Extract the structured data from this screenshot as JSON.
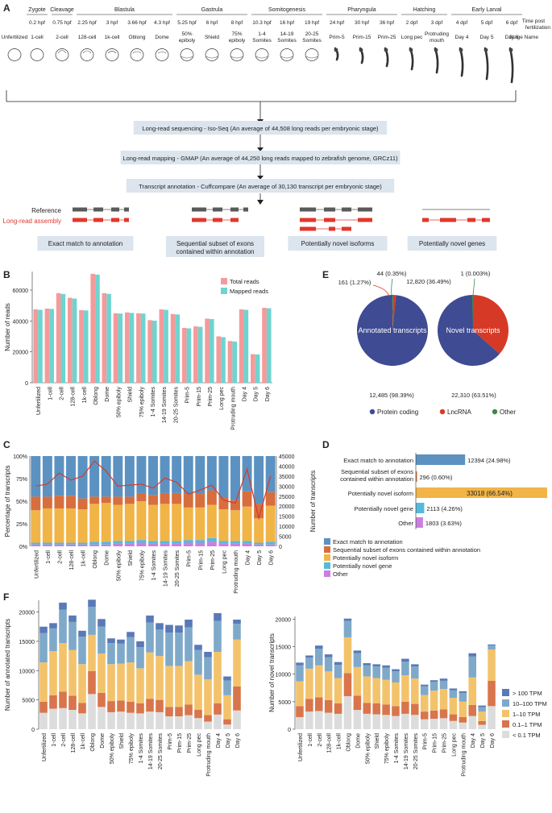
{
  "panelA": {
    "label": "A",
    "periods": [
      {
        "name": "Zygote",
        "stages": [
          {
            "time": "0.2 hpf",
            "name": "1-cell"
          }
        ]
      },
      {
        "name": "Cleavage",
        "stages": [
          {
            "time": "0.75 hpf",
            "name": "2-cell"
          }
        ]
      },
      {
        "name": "Blastula",
        "stages": [
          {
            "time": "2.25 hpf",
            "name": "128-cell"
          },
          {
            "time": "3 hpf",
            "name": "1k-cell"
          },
          {
            "time": "3.66 hpf",
            "name": "Oblong"
          },
          {
            "time": "4.3 hpf",
            "name": "Dome"
          }
        ]
      },
      {
        "name": "Gastrula",
        "stages": [
          {
            "time": "5.25 hpf",
            "name": "50% epiboly"
          },
          {
            "time": "6 hpf",
            "name": "Shield"
          },
          {
            "time": "8 hpf",
            "name": "75% epiboly"
          }
        ]
      },
      {
        "name": "Somitogenesis",
        "stages": [
          {
            "time": "10.3 hpf",
            "name": "1-4 Somites"
          },
          {
            "time": "16 hpf",
            "name": "14-19 Somites"
          },
          {
            "time": "19 hpf",
            "name": "20-25 Somites"
          }
        ]
      },
      {
        "name": "Pharyngula",
        "stages": [
          {
            "time": "24 hpf",
            "name": "Prim-5"
          },
          {
            "time": "30 hpf",
            "name": "Prim-15"
          },
          {
            "time": "36 hpf",
            "name": "Prim-25"
          }
        ]
      },
      {
        "name": "Hatching",
        "stages": [
          {
            "time": "2 dpf",
            "name": "Long pec"
          },
          {
            "time": "3 dpf",
            "name": "Protruding mouth"
          }
        ]
      },
      {
        "name": "Early Larval",
        "stages": [
          {
            "time": "4 dpf",
            "name": "Day 4"
          },
          {
            "time": "5 dpf",
            "name": "Day 5"
          },
          {
            "time": "6 dpf",
            "name": "Day 6"
          }
        ]
      }
    ],
    "unfertilized": "Unfertilized",
    "time_label": "Time post fertilization",
    "stage_label": "Stage Name",
    "steps": [
      "Long-read sequencing - Iso-Seq (An average of 44,508 long reads per embryonic stage)",
      "Long-read mapping - GMAP (An average of 44,250 long reads mapped to zebrafish genome, GRCz11)",
      "Transcript annotation - Cuffcompare (An average of 30,130 transcript per embryonic stage)"
    ],
    "reference_label": "Reference",
    "assembly_label": "Long-read assembly",
    "categories": [
      "Exact match to annotation",
      "Sequential subset of exons contained within annotation",
      "Potentially novel isoforms",
      "Potentially novel genes"
    ]
  },
  "colors": {
    "total": "#f59a9b",
    "mapped": "#6fd4cf",
    "exact": "#5b92c2",
    "sequential": "#d86e3d",
    "isoform": "#f1b447",
    "gene": "#56b9db",
    "other": "#cc7ee0",
    "coding": "#3f4b92",
    "lnc": "#d63a27",
    "pie_other": "#3b8b48",
    "tpm100": "#5a79b7",
    "tpm10": "#7fa9c9",
    "tpm1": "#f3c36c",
    "tpm01": "#d8754c",
    "tpmlow": "#dcdcdc",
    "reference": "#5a5a5a",
    "assembly": "#e1382c"
  },
  "chart_data": [
    {
      "panel": "B",
      "type": "bar",
      "title": "",
      "ylabel": "Number of reads",
      "xlabel": "",
      "ylim": [
        0,
        72000
      ],
      "yticks": [
        0,
        20000,
        40000,
        60000
      ],
      "categories": [
        "Unfertilized",
        "1-cell",
        "2-cell",
        "128-cell",
        "1k-cell",
        "Oblong",
        "Dome",
        "50% epiboly",
        "Shield",
        "75% epiboly",
        "1-4 Somites",
        "14-19 Somites",
        "20-25 Somites",
        "Prim-5",
        "Prim-15",
        "Prim-25",
        "Long pec",
        "Protruding mouth",
        "Day 4",
        "Day 5",
        "Day 6"
      ],
      "series": [
        {
          "name": "Total reads",
          "values": [
            47500,
            48000,
            58000,
            55000,
            47000,
            70500,
            58000,
            45000,
            45500,
            45000,
            40500,
            47500,
            44500,
            35500,
            36500,
            41500,
            30000,
            27000,
            47500,
            18500,
            48500
          ]
        },
        {
          "name": "Mapped reads",
          "values": [
            47200,
            47800,
            57500,
            54500,
            46800,
            70000,
            57500,
            44800,
            45200,
            44800,
            40200,
            47200,
            44200,
            35200,
            36200,
            41200,
            29500,
            26700,
            47200,
            18300,
            48200
          ]
        }
      ],
      "legend": "top-right"
    },
    {
      "panel": "C",
      "type": "bar",
      "ylabel": "Percentage of transcripts",
      "y2label": "Number of transcripts",
      "yticks": [
        "0%",
        "25%",
        "50%",
        "75%",
        "100%"
      ],
      "y2ticks": [
        0,
        5000,
        10000,
        15000,
        20000,
        25000,
        30000,
        35000,
        40000,
        45000
      ],
      "y2lim": [
        0,
        45000
      ],
      "categories": [
        "Unfertilized",
        "1-cell",
        "2-cell",
        "128-cell",
        "1k-cell",
        "Oblong",
        "Dome",
        "50% epiboly",
        "Shield",
        "75% epiboly",
        "1-4 Somites",
        "14-19 Somites",
        "20-25 Somites",
        "Prim-5",
        "Prim-15",
        "Prim-25",
        "Long pec",
        "Protruding mouth",
        "Day 4",
        "Day 5",
        "Day 6"
      ],
      "series": [
        {
          "name": "Other",
          "values": [
            2,
            2,
            2,
            2,
            2,
            2,
            2,
            3,
            3,
            4,
            3,
            3,
            3,
            4,
            4,
            5,
            3,
            3,
            3,
            2,
            2
          ]
        },
        {
          "name": "Potentially novel gene",
          "values": [
            2,
            2,
            2,
            2,
            2,
            3,
            3,
            3,
            3,
            3,
            3,
            3,
            3,
            3,
            3,
            4,
            3,
            3,
            3,
            2,
            3
          ]
        },
        {
          "name": "Potentially novel isoform",
          "values": [
            36,
            38,
            38,
            38,
            37,
            42,
            43,
            40,
            41,
            43,
            40,
            41,
            41,
            36,
            36,
            37,
            35,
            34,
            38,
            27,
            40
          ]
        },
        {
          "name": "Sequential subset of exons contained within annotation",
          "values": [
            15,
            13,
            14,
            14,
            12,
            8,
            7,
            9,
            8,
            9,
            11,
            12,
            12,
            15,
            15,
            16,
            13,
            11,
            17,
            16,
            15
          ]
        },
        {
          "name": "Exact match to annotation",
          "values": [
            45,
            45,
            44,
            44,
            47,
            45,
            45,
            45,
            45,
            41,
            43,
            41,
            41,
            42,
            42,
            38,
            46,
            49,
            39,
            53,
            40
          ]
        }
      ],
      "line": {
        "name": "Number of transcripts",
        "values": [
          30000,
          31000,
          36500,
          33000,
          35000,
          42500,
          37500,
          30000,
          30500,
          31000,
          29000,
          34000,
          32000,
          26000,
          28000,
          30500,
          23000,
          21500,
          38500,
          14000,
          35000
        ]
      }
    },
    {
      "panel": "D",
      "type": "bar",
      "orientation": "horizontal",
      "categories": [
        "Exact match to annotation",
        "Sequential subset of exons contained within annotation",
        "Potentially novel isoform",
        "Potentially novel gene",
        "Other"
      ],
      "values": [
        12394,
        296,
        33018,
        2113,
        1803
      ],
      "labels": [
        "12394 (24.98%)",
        "296 (0.60%)",
        "33018 (66.54%)",
        "2113 (4.26%)",
        "1803 (3.63%)"
      ]
    },
    {
      "panel": "E",
      "type": "pie",
      "pies": [
        {
          "title": "Annotated transcripts",
          "values": [
            12485,
            161,
            44
          ],
          "labels": [
            "12,485 (98.39%)",
            "161 (1.27%)",
            "44 (0.35%)"
          ]
        },
        {
          "title": "Novel transcripts",
          "values": [
            22310,
            12820,
            1
          ],
          "labels": [
            "22,310 (63.51%)",
            "12,820 (36.49%)",
            "1 (0.003%)"
          ]
        }
      ],
      "legend": [
        "Protein coding",
        "LncRNA",
        "Other"
      ]
    },
    {
      "panel": "F-left",
      "type": "bar",
      "stacked": true,
      "ylabel": "Number of annotated transcripts",
      "ylim": [
        0,
        22000
      ],
      "yticks": [
        0,
        5000,
        10000,
        15000,
        20000
      ],
      "categories": [
        "Unfertilized",
        "1-cell",
        "2-cell",
        "128-cell",
        "1k-cell",
        "Oblong",
        "Dome",
        "50% epiboly",
        "Shield",
        "75% epiboly",
        "1-4 Somites",
        "14-19 Somites",
        "20-25 Somites",
        "Prim-5",
        "Prim-15",
        "Prim-25",
        "Long pec",
        "Protruding mouth",
        "Day 4",
        "Day 5",
        "Day 6"
      ],
      "series": [
        {
          "name": "< 0.1 TPM",
          "values": [
            2800,
            3500,
            3600,
            3300,
            2700,
            6000,
            3800,
            2900,
            3000,
            2800,
            2700,
            3000,
            2900,
            2200,
            2200,
            2400,
            1900,
            1300,
            2500,
            800,
            3200
          ]
        },
        {
          "name": "0.1–1 TPM",
          "values": [
            1900,
            2300,
            2800,
            2400,
            1800,
            3900,
            2400,
            1900,
            1900,
            1900,
            1700,
            2200,
            2100,
            1600,
            1600,
            1800,
            1400,
            1100,
            1900,
            900,
            4100
          ]
        },
        {
          "name": "1–10 TPM",
          "values": [
            6700,
            7500,
            8300,
            7800,
            6600,
            6200,
            6700,
            6300,
            6300,
            6700,
            6000,
            7900,
            7500,
            7000,
            7000,
            7400,
            6000,
            6100,
            8800,
            4100,
            8000
          ]
        },
        {
          "name": "10–100 TPM",
          "values": [
            5000,
            3900,
            5700,
            4800,
            4700,
            4800,
            4600,
            3600,
            3400,
            4300,
            3600,
            5100,
            4500,
            5700,
            5700,
            5800,
            4200,
            3800,
            5300,
            2500,
            2700
          ]
        },
        {
          "name": "> 100 TPM",
          "values": [
            1100,
            900,
            1200,
            1100,
            1000,
            1200,
            1300,
            800,
            700,
            900,
            1000,
            1200,
            1100,
            1300,
            1200,
            1300,
            900,
            900,
            1300,
            700,
            700
          ]
        }
      ]
    },
    {
      "panel": "F-right",
      "type": "bar",
      "stacked": true,
      "ylabel": "Number of novel transcripts",
      "ylim": [
        0,
        20500
      ],
      "yticks": [
        0,
        5000,
        10000,
        15000,
        20000
      ],
      "categories": [
        "Unfertilized",
        "1-cell",
        "2-cell",
        "128-cell",
        "1k-cell",
        "Oblong",
        "Dome",
        "50% epiboly",
        "Shield",
        "75% epiboly",
        "1-4 Somites",
        "14-19 Somites",
        "20-25 Somites",
        "Prim-5",
        "Prim-15",
        "Prim-25",
        "Long pec",
        "Protruding mouth",
        "Day 4",
        "Day 5",
        "Day 6"
      ],
      "series": [
        {
          "name": "< 0.1 TPM",
          "values": [
            2200,
            3200,
            3300,
            3000,
            2800,
            6000,
            3500,
            2800,
            2700,
            2600,
            2400,
            2800,
            2600,
            1800,
            1900,
            2000,
            1500,
            1200,
            2400,
            800,
            4200
          ]
        },
        {
          "name": "0.1–1 TPM",
          "values": [
            2000,
            2300,
            2500,
            2300,
            1900,
            4200,
            2600,
            2000,
            2000,
            1900,
            1800,
            2200,
            2000,
            1400,
            1500,
            1600,
            1200,
            1000,
            2000,
            700,
            4600
          ]
        },
        {
          "name": "1–10 TPM",
          "values": [
            4500,
            5500,
            5800,
            5200,
            4600,
            6500,
            5200,
            4800,
            4600,
            4500,
            4300,
            4800,
            4600,
            3000,
            3600,
            3700,
            3000,
            2800,
            5000,
            1700,
            5700
          ]
        },
        {
          "name": "10–100 TPM",
          "values": [
            2900,
            2000,
            3000,
            2600,
            2400,
            3000,
            2500,
            2000,
            2100,
            2200,
            2000,
            2500,
            2200,
            1600,
            1600,
            1500,
            1400,
            1600,
            3800,
            800,
            700
          ]
        },
        {
          "name": "> 100 TPM",
          "values": [
            500,
            400,
            600,
            500,
            500,
            400,
            500,
            400,
            400,
            400,
            400,
            500,
            400,
            300,
            300,
            400,
            300,
            300,
            600,
            300,
            200
          ]
        }
      ]
    }
  ],
  "labels": {
    "B": "B",
    "C": "C",
    "D": "D",
    "E": "E",
    "F": "F",
    "B_legend": [
      "Total reads",
      "Mapped reads"
    ],
    "C_legend": [
      "Exact match to annotation",
      "Sequential subset of exons contained within annotation",
      "Potentially novel isoform",
      "Potentially novel gene",
      "Other"
    ],
    "F_legend": [
      "> 100 TPM",
      "10–100 TPM",
      "1–10 TPM",
      "0.1–1 TPM",
      "< 0.1 TPM"
    ]
  }
}
